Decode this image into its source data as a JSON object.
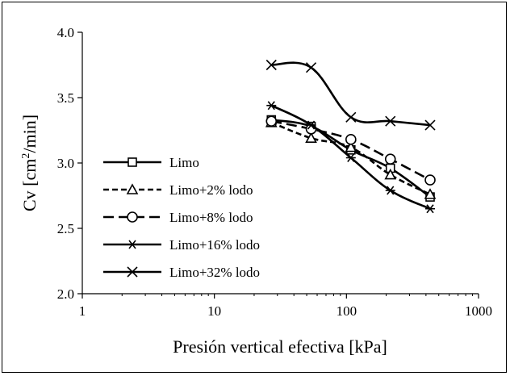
{
  "chart_data": {
    "type": "line",
    "title": "",
    "xlabel": "Presión vertical efectiva [kPa]",
    "ylabel_main": "Cv [cm",
    "ylabel_sup": "2",
    "ylabel_tail": "/min]",
    "x_scale": "log",
    "xlim": [
      1,
      1000
    ],
    "ylim": [
      2.0,
      4.0
    ],
    "x_ticks": [
      1,
      10,
      100,
      1000
    ],
    "y_ticks": [
      "2.0",
      "2.5",
      "3.0",
      "3.5",
      "4.0"
    ],
    "grid": false,
    "legend_position": "center-left",
    "series": [
      {
        "name": "Limo",
        "marker": "square",
        "dash": "solid",
        "points": [
          [
            27,
            3.33
          ],
          [
            54,
            3.28
          ],
          [
            108,
            3.1
          ],
          [
            215,
            2.96
          ],
          [
            430,
            2.74
          ]
        ]
      },
      {
        "name": "Limo+2% lodo",
        "marker": "triangle",
        "dash": "short-dash",
        "points": [
          [
            27,
            3.31
          ],
          [
            54,
            3.19
          ],
          [
            108,
            3.12
          ],
          [
            215,
            2.91
          ],
          [
            430,
            2.76
          ]
        ]
      },
      {
        "name": "Limo+8% lodo",
        "marker": "circle",
        "dash": "long-dash",
        "points": [
          [
            27,
            3.32
          ],
          [
            54,
            3.26
          ],
          [
            108,
            3.18
          ],
          [
            215,
            3.03
          ],
          [
            430,
            2.87
          ]
        ]
      },
      {
        "name": "Limo+16% lodo",
        "marker": "asterisk",
        "dash": "solid",
        "points": [
          [
            27,
            3.44
          ],
          [
            54,
            3.29
          ],
          [
            108,
            3.04
          ],
          [
            215,
            2.79
          ],
          [
            430,
            2.65
          ]
        ]
      },
      {
        "name": "Limo+32% lodo",
        "marker": "x",
        "dash": "solid",
        "points": [
          [
            27,
            3.75
          ],
          [
            54,
            3.73
          ],
          [
            108,
            3.35
          ],
          [
            215,
            3.32
          ],
          [
            430,
            3.29
          ]
        ]
      }
    ]
  }
}
